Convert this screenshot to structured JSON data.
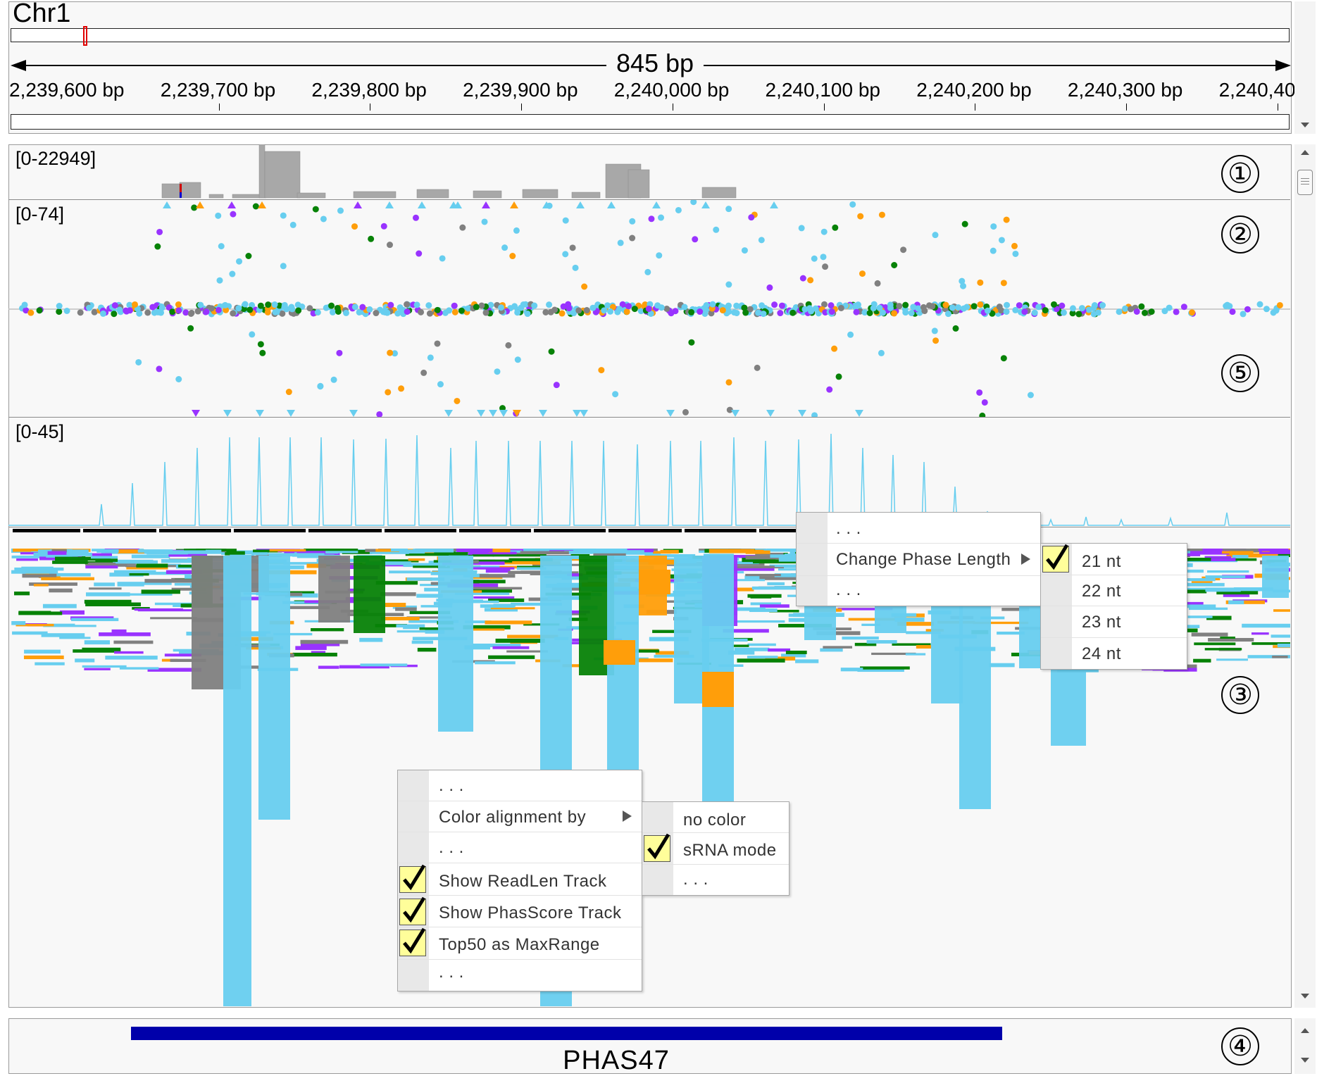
{
  "ruler": {
    "chromosome": "Chr1",
    "span_label": "845  bp",
    "ticks": [
      {
        "label": "2,239,600 bp"
      },
      {
        "label": "2,239,700 bp"
      },
      {
        "label": "2,239,800 bp"
      },
      {
        "label": "2,239,900 bp"
      },
      {
        "label": "2,240,000 bp"
      },
      {
        "label": "2,240,100 bp"
      },
      {
        "label": "2,240,200 bp"
      },
      {
        "label": "2,240,300 bp"
      },
      {
        "label": "2,240,40"
      }
    ]
  },
  "tracks": {
    "coverage": {
      "range": "[0-22949]",
      "annotation": "①"
    },
    "phasscore": {
      "range": "[0-74]",
      "annotation_top": "②",
      "annotation_bottom": "⑤"
    },
    "readlen": {
      "range": "[0-45]"
    },
    "alignment": {
      "annotation": "③"
    },
    "gene": {
      "name": "PHAS47",
      "annotation": "④"
    }
  },
  "colors": {
    "sky": "#67ceef",
    "orange": "#ff9e0a",
    "purple": "#9933ff",
    "green": "#078207",
    "gray": "#808080",
    "gene_blue": "#0000aa",
    "check_yellow": "#fffe9a"
  },
  "menus": {
    "phase_menu": {
      "items": [
        {
          "label": ". . ."
        },
        {
          "label": "Change Phase Length",
          "has_submenu": true
        },
        {
          "label": ". . ."
        }
      ]
    },
    "phase_length_submenu": {
      "items": [
        {
          "label": "21 nt",
          "checked": true
        },
        {
          "label": "22 nt",
          "checked": false
        },
        {
          "label": "23 nt",
          "checked": false
        },
        {
          "label": "24 nt",
          "checked": false
        }
      ]
    },
    "alignment_menu": {
      "items": [
        {
          "label": ". . .",
          "checked": false
        },
        {
          "label": "Color alignment by",
          "has_submenu": true,
          "checked": false
        },
        {
          "label": ". . .",
          "checked": false
        },
        {
          "label": "Show ReadLen Track",
          "checked": true
        },
        {
          "label": "Show  PhasScore  Track",
          "checked": true
        },
        {
          "label": "Top50 as MaxRange",
          "checked": true
        },
        {
          "label": ". . .",
          "checked": false
        }
      ]
    },
    "color_by_submenu": {
      "items": [
        {
          "label": "no color",
          "checked": false
        },
        {
          "label": "sRNA mode",
          "checked": true
        },
        {
          "label": ". . .",
          "checked": false
        }
      ]
    }
  }
}
